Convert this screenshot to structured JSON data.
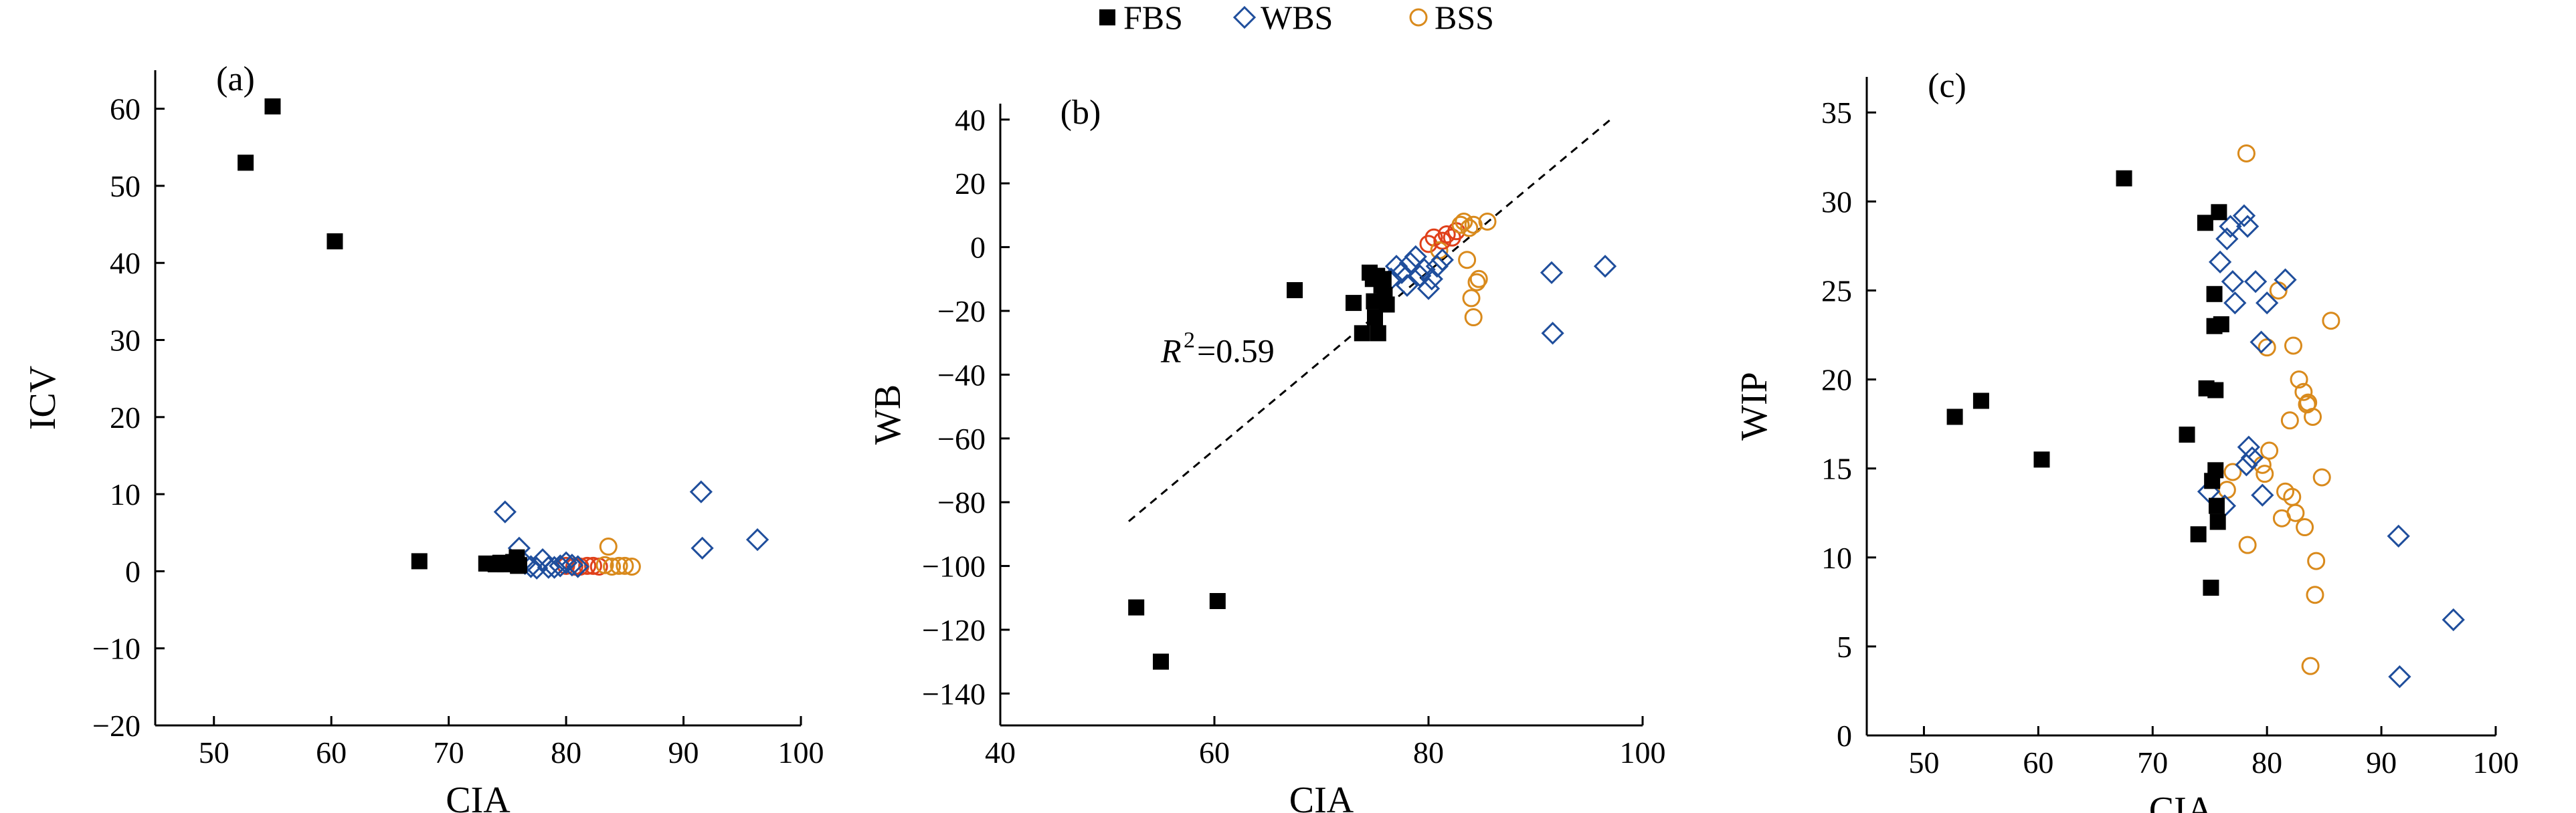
{
  "legend": [
    {
      "name": "FBS",
      "marker": "square",
      "color": "#000000"
    },
    {
      "name": "WBS",
      "marker": "diamond",
      "color": "#1f4e9c"
    },
    {
      "name": "BSS",
      "marker": "circle",
      "color": "#d98a1c"
    }
  ],
  "colors": {
    "fbs": "#000000",
    "wbs": "#1f4e9c",
    "bss": "#d98a1c",
    "bss_dense": "#e0401a"
  },
  "chart_data": [
    {
      "type": "scatter",
      "panel_label": "(a)",
      "xlabel": "CIA",
      "ylabel": "ICV",
      "xlim": [
        45,
        100
      ],
      "ylim": [
        -20,
        65
      ],
      "xticks": [
        50,
        60,
        70,
        80,
        90,
        100
      ],
      "yticks": [
        -20,
        -10,
        0,
        10,
        20,
        30,
        40,
        50,
        60
      ],
      "grid": false,
      "series": [
        {
          "name": "FBS",
          "points": [
            [
              52.7,
              53
            ],
            [
              55,
              60.3
            ],
            [
              60.3,
              42.8
            ],
            [
              67.5,
              1.3
            ],
            [
              73.2,
              1.0
            ],
            [
              74.0,
              0.9
            ],
            [
              74.8,
              0.9
            ],
            [
              75.3,
              1.0
            ],
            [
              75.8,
              1.8
            ],
            [
              76.0,
              0.8
            ],
            [
              75.5,
              1.2
            ],
            [
              74.4,
              1.1
            ],
            [
              75.9,
              0.7
            ]
          ]
        },
        {
          "name": "WBS",
          "points": [
            [
              74.8,
              7.7
            ],
            [
              76.0,
              3.0
            ],
            [
              76.5,
              1.0
            ],
            [
              77.0,
              0.6
            ],
            [
              77.5,
              0.4
            ],
            [
              78.0,
              1.5
            ],
            [
              78.5,
              0.5
            ],
            [
              79.0,
              0.5
            ],
            [
              79.5,
              0.7
            ],
            [
              80.0,
              1.1
            ],
            [
              80.5,
              0.8
            ],
            [
              81.0,
              0.6
            ],
            [
              91.5,
              10.3
            ],
            [
              91.6,
              3.0
            ],
            [
              96.3,
              4.1
            ]
          ]
        },
        {
          "name": "BSS",
          "points": [
            [
              80.0,
              0.7
            ],
            [
              80.7,
              0.6
            ],
            [
              81.2,
              0.6
            ],
            [
              81.8,
              0.7
            ],
            [
              82.3,
              0.7
            ],
            [
              82.8,
              0.6
            ],
            [
              83.3,
              0.8
            ],
            [
              83.6,
              3.2
            ],
            [
              83.9,
              0.6
            ],
            [
              84.5,
              0.7
            ],
            [
              85.0,
              0.7
            ],
            [
              85.6,
              0.6
            ]
          ]
        }
      ]
    },
    {
      "type": "scatter",
      "panel_label": "(b)",
      "xlabel": "CIA",
      "ylabel": "WB",
      "xlim": [
        40,
        100
      ],
      "ylim": [
        -150,
        45
      ],
      "xticks": [
        40,
        60,
        80,
        100
      ],
      "yticks": [
        -140,
        -120,
        -100,
        -80,
        -60,
        -40,
        -20,
        0,
        20,
        40
      ],
      "grid": false,
      "annotation": {
        "text": "=0.59",
        "symbol": "R",
        "superscript": "2"
      },
      "trendline": {
        "x": [
          52,
          97
        ],
        "y": [
          -86,
          40
        ]
      },
      "series": [
        {
          "name": "FBS",
          "points": [
            [
              52.7,
              -113
            ],
            [
              55,
              -130
            ],
            [
              60.3,
              -111
            ],
            [
              67.5,
              -13.5
            ],
            [
              73.0,
              -17.5
            ],
            [
              73.8,
              -27
            ],
            [
              74.5,
              -8
            ],
            [
              74.8,
              -10
            ],
            [
              75.0,
              -22
            ],
            [
              75.3,
              -27
            ],
            [
              75.6,
              -12
            ],
            [
              75.9,
              -15
            ],
            [
              76.1,
              -18
            ],
            [
              75.2,
              -9
            ],
            [
              74.9,
              -17
            ],
            [
              75.8,
              -10
            ]
          ]
        },
        {
          "name": "WBS",
          "points": [
            [
              76.5,
              -10
            ],
            [
              77.0,
              -6
            ],
            [
              77.5,
              -8
            ],
            [
              78.0,
              -12
            ],
            [
              78.3,
              -5
            ],
            [
              78.8,
              -3
            ],
            [
              79.2,
              -9
            ],
            [
              79.6,
              -7
            ],
            [
              80.0,
              -13
            ],
            [
              80.3,
              -10
            ],
            [
              80.8,
              -6
            ],
            [
              81.3,
              -4
            ],
            [
              91.5,
              -8
            ],
            [
              91.6,
              -27
            ],
            [
              96.5,
              -6
            ]
          ]
        },
        {
          "name": "BSS",
          "points": [
            [
              80.0,
              1
            ],
            [
              80.5,
              3
            ],
            [
              81.0,
              -1
            ],
            [
              81.3,
              2
            ],
            [
              81.7,
              4
            ],
            [
              82.2,
              3
            ],
            [
              82.6,
              5
            ],
            [
              83.0,
              7
            ],
            [
              83.3,
              8
            ],
            [
              83.8,
              6
            ],
            [
              84.2,
              7
            ],
            [
              83.6,
              -4
            ],
            [
              84.0,
              -16
            ],
            [
              84.2,
              -22
            ],
            [
              84.5,
              -11
            ],
            [
              84.7,
              -10
            ],
            [
              85.5,
              8
            ]
          ]
        }
      ]
    },
    {
      "type": "scatter",
      "panel_label": "(c)",
      "xlabel": "CIA",
      "ylabel": "WIP",
      "xlim": [
        45,
        100
      ],
      "ylim": [
        0,
        37
      ],
      "xticks": [
        50,
        60,
        70,
        80,
        90,
        100
      ],
      "yticks": [
        0,
        5,
        10,
        15,
        20,
        25,
        30,
        35
      ],
      "grid": false,
      "series": [
        {
          "name": "FBS",
          "points": [
            [
              52.7,
              17.9
            ],
            [
              55,
              18.8
            ],
            [
              60.3,
              15.5
            ],
            [
              67.5,
              31.3
            ],
            [
              73.0,
              16.9
            ],
            [
              74.0,
              11.3
            ],
            [
              74.6,
              28.8
            ],
            [
              74.7,
              19.5
            ],
            [
              75.2,
              14.3
            ],
            [
              75.4,
              24.8
            ],
            [
              75.4,
              23.0
            ],
            [
              75.5,
              19.4
            ],
            [
              75.6,
              12.9
            ],
            [
              75.7,
              12.0
            ],
            [
              75.8,
              29.4
            ],
            [
              76.0,
              23.1
            ],
            [
              75.1,
              8.3
            ],
            [
              75.5,
              14.9
            ]
          ]
        },
        {
          "name": "WBS",
          "points": [
            [
              74.9,
              13.7
            ],
            [
              75.9,
              26.6
            ],
            [
              76.3,
              12.9
            ],
            [
              76.5,
              27.9
            ],
            [
              76.8,
              28.6
            ],
            [
              77.0,
              25.5
            ],
            [
              77.2,
              24.3
            ],
            [
              78.0,
              29.2
            ],
            [
              78.3,
              28.6
            ],
            [
              78.2,
              15.2
            ],
            [
              78.4,
              16.2
            ],
            [
              78.7,
              15.6
            ],
            [
              79.0,
              25.5
            ],
            [
              79.5,
              22.1
            ],
            [
              79.6,
              13.5
            ],
            [
              80.0,
              24.3
            ],
            [
              81.6,
              25.6
            ],
            [
              91.5,
              11.2
            ],
            [
              91.6,
              3.3
            ],
            [
              96.3,
              6.5
            ]
          ]
        },
        {
          "name": "BSS",
          "points": [
            [
              76.5,
              13.8
            ],
            [
              77.0,
              14.8
            ],
            [
              78.2,
              32.7
            ],
            [
              78.3,
              10.7
            ],
            [
              79.6,
              15.2
            ],
            [
              79.8,
              14.7
            ],
            [
              80.0,
              21.8
            ],
            [
              80.2,
              16.0
            ],
            [
              81.0,
              25.0
            ],
            [
              81.3,
              12.2
            ],
            [
              81.6,
              13.7
            ],
            [
              82.0,
              17.7
            ],
            [
              82.2,
              13.4
            ],
            [
              82.3,
              21.9
            ],
            [
              82.5,
              12.5
            ],
            [
              82.8,
              20.0
            ],
            [
              83.2,
              19.3
            ],
            [
              83.3,
              11.7
            ],
            [
              83.5,
              18.6
            ],
            [
              83.6,
              18.7
            ],
            [
              83.8,
              3.9
            ],
            [
              84.0,
              17.9
            ],
            [
              84.2,
              7.9
            ],
            [
              84.3,
              9.8
            ],
            [
              84.8,
              14.5
            ],
            [
              85.6,
              23.3
            ]
          ]
        }
      ]
    }
  ]
}
